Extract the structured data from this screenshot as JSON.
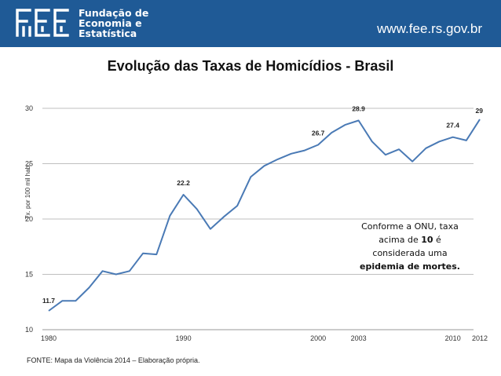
{
  "header": {
    "org_name_line1": "Fundação de",
    "org_name_line2": "Economia e",
    "org_name_line3": "Estatística",
    "url": "www.fee.rs.gov.br",
    "background_color": "#1f5a96",
    "logo_icon": "fee-logo-icon"
  },
  "chart_data": {
    "type": "line",
    "title": "Evolução das Taxas de Homicídios - Brasil",
    "xlabel": "",
    "ylabel": "Tx. por 100 mil hab.",
    "ylim": [
      10,
      30
    ],
    "yticks": [
      10,
      15,
      20,
      25,
      30
    ],
    "xlim": [
      1980,
      2012
    ],
    "xtick_labels": [
      {
        "year": 1980,
        "label": "1980"
      },
      {
        "year": 1990,
        "label": "1990"
      },
      {
        "year": 2000,
        "label": "2000"
      },
      {
        "year": 2003,
        "label": "2003"
      },
      {
        "year": 2010,
        "label": "2010"
      },
      {
        "year": 2012,
        "label": "2012"
      }
    ],
    "grid": true,
    "line_color": "#4a7ab5",
    "x": [
      1980,
      1981,
      1982,
      1983,
      1984,
      1985,
      1986,
      1987,
      1988,
      1989,
      1990,
      1991,
      1992,
      1993,
      1994,
      1995,
      1996,
      1997,
      1998,
      1999,
      2000,
      2001,
      2002,
      2003,
      2004,
      2005,
      2006,
      2007,
      2008,
      2009,
      2010,
      2011,
      2012
    ],
    "values": [
      11.7,
      12.6,
      12.6,
      13.8,
      15.3,
      15.0,
      15.3,
      16.9,
      16.8,
      20.3,
      22.2,
      20.9,
      19.1,
      20.2,
      21.2,
      23.8,
      24.8,
      25.4,
      25.9,
      26.2,
      26.7,
      27.8,
      28.5,
      28.9,
      27.0,
      25.8,
      26.3,
      25.2,
      26.4,
      27.0,
      27.4,
      27.1,
      29.0
    ],
    "data_labels": [
      {
        "year": 1980,
        "label": "11.7"
      },
      {
        "year": 1990,
        "label": "22.2"
      },
      {
        "year": 2000,
        "label": "26.7"
      },
      {
        "year": 2003,
        "label": "28.9"
      },
      {
        "year": 2010,
        "label": "27.4"
      },
      {
        "year": 2012,
        "label": "29"
      }
    ]
  },
  "annotation": {
    "line1": "Conforme a ONU, taxa",
    "line2_prefix": "acima de ",
    "line2_bold": "10",
    "line2_suffix": " é",
    "line3": "considerada uma",
    "line4": "epidemia de mortes."
  },
  "source": "FONTE: Mapa da Violência 2014 – Elaboração própria."
}
